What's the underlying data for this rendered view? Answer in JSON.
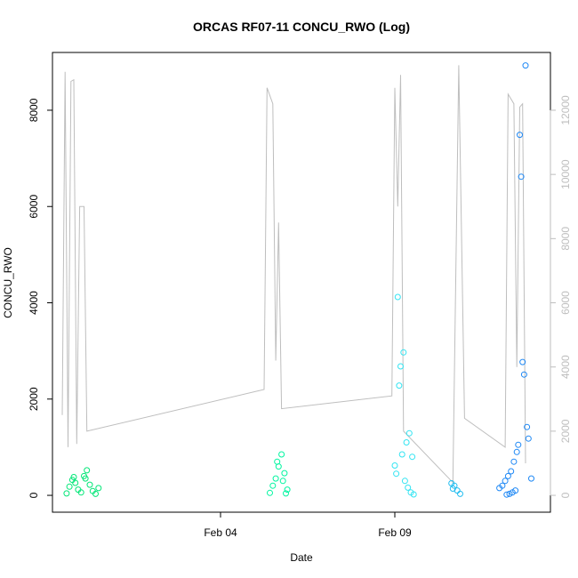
{
  "chart_data": {
    "type": "scatter",
    "title": "ORCAS RF07-11 CONCU_RWO (Log)",
    "xlabel": "Date",
    "ylabel": "CONCU_RWO",
    "x_ticks": [
      {
        "date": "2016-02-04",
        "label": "Feb 04"
      },
      {
        "date": "2016-02-09",
        "label": "Feb 09"
      }
    ],
    "xlim": [
      "2015-07-31T00:00",
      "2016-02-13T00:00"
    ],
    "ylim": [
      -350,
      9200
    ],
    "y_ticks": [
      0,
      2000,
      4000,
      6000,
      8000
    ],
    "y2_axis": {
      "ylim": [
        -525,
        13800
      ],
      "ticks": [
        0,
        2000,
        4000,
        6000,
        8000,
        10000,
        12000
      ],
      "color": "#bebebe"
    },
    "grid": false,
    "point_style": "open-circle",
    "series": [
      {
        "color": "#00e676",
        "points": [
          {
            "x": "2016-01-30T14:00",
            "y": 40
          },
          {
            "x": "2016-01-30T16:00",
            "y": 180
          },
          {
            "x": "2016-01-30T18:00",
            "y": 320
          },
          {
            "x": "2016-01-30T20:00",
            "y": 260
          },
          {
            "x": "2016-01-30T22:00",
            "y": 120
          },
          {
            "x": "2016-01-31T00:00",
            "y": 60
          },
          {
            "x": "2016-01-31T02:00",
            "y": 400
          },
          {
            "x": "2016-01-31T04:00",
            "y": 520
          },
          {
            "x": "2016-01-31T06:00",
            "y": 220
          },
          {
            "x": "2016-01-31T08:00",
            "y": 90
          },
          {
            "x": "2016-01-31T10:00",
            "y": 30
          },
          {
            "x": "2016-01-31T12:00",
            "y": 150
          },
          {
            "x": "2016-01-31T03:00",
            "y": 350
          },
          {
            "x": "2016-01-30T19:00",
            "y": 380
          }
        ]
      },
      {
        "color": "#00f5a0",
        "points": [
          {
            "x": "2016-02-05T10:00",
            "y": 50
          },
          {
            "x": "2016-02-05T12:00",
            "y": 200
          },
          {
            "x": "2016-02-05T14:00",
            "y": 350
          },
          {
            "x": "2016-02-05T16:00",
            "y": 600
          },
          {
            "x": "2016-02-05T18:00",
            "y": 850
          },
          {
            "x": "2016-02-05T20:00",
            "y": 460
          },
          {
            "x": "2016-02-05T22:00",
            "y": 120
          },
          {
            "x": "2016-02-05T15:00",
            "y": 700
          },
          {
            "x": "2016-02-05T19:00",
            "y": 300
          },
          {
            "x": "2016-02-05T21:00",
            "y": 40
          }
        ]
      },
      {
        "color": "#33e4f2",
        "points": [
          {
            "x": "2016-02-09T02:00",
            "y": 4120
          },
          {
            "x": "2016-02-09T06:00",
            "y": 2970
          },
          {
            "x": "2016-02-09T04:00",
            "y": 2680
          },
          {
            "x": "2016-02-09T03:00",
            "y": 2280
          },
          {
            "x": "2016-02-09T10:00",
            "y": 1290
          },
          {
            "x": "2016-02-09T08:00",
            "y": 1100
          },
          {
            "x": "2016-02-09T05:00",
            "y": 850
          },
          {
            "x": "2016-02-09T12:00",
            "y": 800
          },
          {
            "x": "2016-02-09T00:00",
            "y": 620
          },
          {
            "x": "2016-02-09T01:00",
            "y": 450
          },
          {
            "x": "2016-02-09T07:00",
            "y": 300
          },
          {
            "x": "2016-02-09T09:00",
            "y": 160
          },
          {
            "x": "2016-02-09T11:00",
            "y": 60
          },
          {
            "x": "2016-02-09T13:00",
            "y": 20
          }
        ]
      },
      {
        "color": "#22bdf0",
        "points": [
          {
            "x": "2016-02-10T15:00",
            "y": 250
          },
          {
            "x": "2016-02-10T17:00",
            "y": 200
          },
          {
            "x": "2016-02-10T19:00",
            "y": 100
          },
          {
            "x": "2016-02-10T21:00",
            "y": 30
          },
          {
            "x": "2016-02-10T16:00",
            "y": 140
          }
        ]
      },
      {
        "color": "#1e88f5",
        "points": [
          {
            "x": "2016-02-12T18:00",
            "y": 8930
          },
          {
            "x": "2016-02-12T14:00",
            "y": 7490
          },
          {
            "x": "2016-02-12T15:00",
            "y": 6620
          },
          {
            "x": "2016-02-12T16:00",
            "y": 2770
          },
          {
            "x": "2016-02-12T17:00",
            "y": 2510
          },
          {
            "x": "2016-02-12T19:00",
            "y": 1420
          },
          {
            "x": "2016-02-12T20:00",
            "y": 1180
          },
          {
            "x": "2016-02-12T13:00",
            "y": 1050
          },
          {
            "x": "2016-02-12T12:00",
            "y": 900
          },
          {
            "x": "2016-02-12T10:00",
            "y": 700
          },
          {
            "x": "2016-02-12T08:00",
            "y": 500
          },
          {
            "x": "2016-02-12T06:00",
            "y": 400
          },
          {
            "x": "2016-02-12T04:00",
            "y": 300
          },
          {
            "x": "2016-02-12T02:00",
            "y": 200
          },
          {
            "x": "2016-02-12T00:00",
            "y": 150
          },
          {
            "x": "2016-02-12T22:00",
            "y": 350
          },
          {
            "x": "2016-02-12T11:00",
            "y": 100
          },
          {
            "x": "2016-02-12T09:00",
            "y": 60
          },
          {
            "x": "2016-02-12T07:00",
            "y": 30
          },
          {
            "x": "2016-02-12T05:00",
            "y": 15
          }
        ]
      }
    ],
    "line_series": {
      "axis": "right",
      "color": "#bebebe",
      "points": [
        {
          "x": "2016-01-30T11:00",
          "y": 2500
        },
        {
          "x": "2016-01-30T13:00",
          "y": 13200
        },
        {
          "x": "2016-01-30T15:00",
          "y": 1500
        },
        {
          "x": "2016-01-30T17:00",
          "y": 12900
        },
        {
          "x": "2016-01-30T19:00",
          "y": 12950
        },
        {
          "x": "2016-01-30T21:00",
          "y": 1600
        },
        {
          "x": "2016-01-30T23:00",
          "y": 9000
        },
        {
          "x": "2016-01-31T02:00",
          "y": 9000
        },
        {
          "x": "2016-01-31T04:00",
          "y": 2000
        },
        {
          "x": "2016-02-05T06:00",
          "y": 3300
        },
        {
          "x": "2016-02-05T08:00",
          "y": 12700
        },
        {
          "x": "2016-02-05T12:00",
          "y": 12200
        },
        {
          "x": "2016-02-05T14:00",
          "y": 4200
        },
        {
          "x": "2016-02-05T16:00",
          "y": 8500
        },
        {
          "x": "2016-02-05T18:00",
          "y": 2700
        },
        {
          "x": "2016-02-08T22:00",
          "y": 3100
        },
        {
          "x": "2016-02-09T00:00",
          "y": 12700
        },
        {
          "x": "2016-02-09T02:00",
          "y": 9000
        },
        {
          "x": "2016-02-09T04:00",
          "y": 13100
        },
        {
          "x": "2016-02-09T06:00",
          "y": 2000
        },
        {
          "x": "2016-02-10T16:00",
          "y": 400
        },
        {
          "x": "2016-02-10T20:00",
          "y": 13400
        },
        {
          "x": "2016-02-11T00:00",
          "y": 2400
        },
        {
          "x": "2016-02-12T04:00",
          "y": 1500
        },
        {
          "x": "2016-02-12T06:00",
          "y": 12500
        },
        {
          "x": "2016-02-12T10:00",
          "y": 12200
        },
        {
          "x": "2016-02-12T12:00",
          "y": 4000
        },
        {
          "x": "2016-02-12T14:00",
          "y": 12100
        },
        {
          "x": "2016-02-12T16:00",
          "y": 12200
        },
        {
          "x": "2016-02-12T18:00",
          "y": 1000
        }
      ]
    }
  }
}
